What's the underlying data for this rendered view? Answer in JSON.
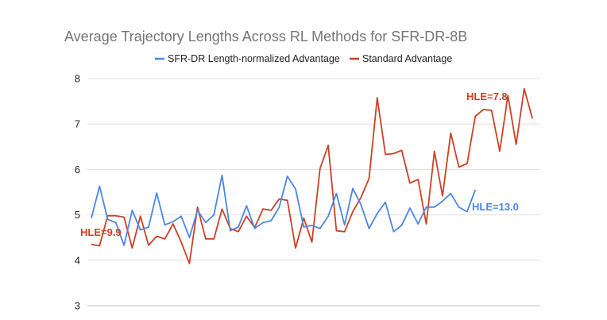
{
  "chart_data": {
    "type": "line",
    "title": "Average Trajectory Lengths Across RL Methods for SFR-DR-8B",
    "xlabel": "",
    "ylabel": "",
    "ylim": [
      3,
      8
    ],
    "yticks": [
      "3",
      "4",
      "5",
      "6",
      "7",
      "8"
    ],
    "grid": true,
    "legend_position": "top",
    "series": [
      {
        "name": "SFR-DR Length-normalized Advantage",
        "color": "#4a86e8",
        "values": [
          4.93,
          5.63,
          4.9,
          4.83,
          4.33,
          5.1,
          4.67,
          4.73,
          5.48,
          4.78,
          4.85,
          4.97,
          4.5,
          5.1,
          4.83,
          5.0,
          5.87,
          4.65,
          4.73,
          5.2,
          4.7,
          4.83,
          4.87,
          5.17,
          5.85,
          5.57,
          4.73,
          4.77,
          4.7,
          4.97,
          5.47,
          4.78,
          5.58,
          5.23,
          4.7,
          5.03,
          5.28,
          4.63,
          4.77,
          5.15,
          4.8,
          5.17,
          5.17,
          5.3,
          5.47,
          5.17,
          5.07,
          5.55
        ]
      },
      {
        "name": "Standard Advantage",
        "color": "#cc4125",
        "values": [
          4.35,
          4.32,
          4.98,
          4.98,
          4.95,
          4.27,
          4.97,
          4.33,
          4.53,
          4.47,
          4.8,
          4.4,
          3.93,
          5.17,
          4.47,
          4.47,
          5.13,
          4.7,
          4.63,
          4.97,
          4.72,
          5.13,
          5.1,
          5.35,
          5.32,
          4.27,
          4.93,
          4.4,
          6.02,
          6.53,
          4.65,
          4.63,
          5.07,
          5.38,
          5.8,
          7.58,
          6.33,
          6.35,
          6.42,
          5.7,
          5.78,
          4.8,
          6.4,
          5.42,
          6.8,
          6.05,
          6.13,
          7.17,
          7.32,
          7.3,
          6.4,
          7.63,
          6.55,
          7.78,
          7.12
        ]
      }
    ],
    "annotations": [
      {
        "text": "HLE=9.9",
        "color": "#cc4125"
      },
      {
        "text": "HLE=7.8",
        "color": "#cc4125"
      },
      {
        "text": "HLE=13.0",
        "color": "#4a86e8"
      }
    ]
  }
}
